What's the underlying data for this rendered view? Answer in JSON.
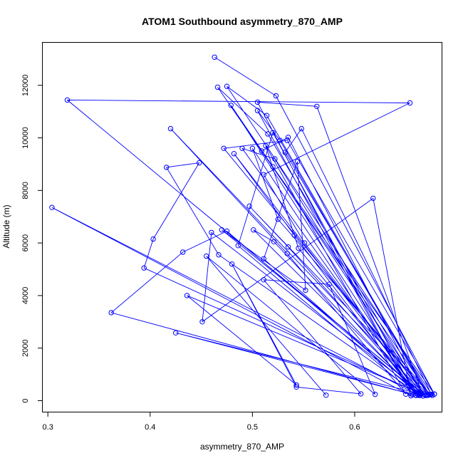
{
  "chart_data": {
    "type": "line",
    "title": "ATOM1 Southbound asymmetry_870_AMP",
    "xlabel": "asymmetry_870_AMP",
    "ylabel": "Altitude (m)",
    "xlim": [
      0.295,
      0.685
    ],
    "ylim": [
      -420,
      13620
    ],
    "xticks": [
      0.3,
      0.4,
      0.5,
      0.6
    ],
    "xtick_labels": [
      "0.3",
      "0.4",
      "0.5",
      "0.6"
    ],
    "yticks": [
      0,
      2000,
      4000,
      6000,
      8000,
      10000,
      12000
    ],
    "ytick_labels": [
      "0",
      "2000",
      "4000",
      "6000",
      "8000",
      "10000",
      "12000"
    ],
    "grid": false,
    "colors": {
      "series": "#0000ff",
      "axis": "#000000",
      "background": "#ffffff"
    },
    "series": [
      {
        "x": [
          0.463,
          0.523,
          0.678,
          0.676,
          0.475,
          0.514,
          0.672,
          0.675,
          0.548,
          0.532,
          0.673,
          0.466,
          0.515,
          0.667,
          0.563,
          0.505,
          0.655,
          0.505,
          0.527,
          0.671,
          0.472,
          0.534,
          0.678,
          0.509,
          0.535,
          0.665,
          0.319,
          0.654,
          0.511,
          0.551,
          0.669,
          0.47,
          0.552,
          0.544,
          0.511,
          0.661,
          0.479,
          0.52,
          0.668,
          0.42,
          0.534,
          0.65,
          0.513,
          0.545,
          0.663,
          0.49,
          0.522,
          0.664,
          0.482,
          0.541,
          0.66,
          0.486,
          0.52,
          0.66,
          0.5,
          0.525,
          0.674,
          0.497,
          0.535,
          0.663,
          0.501,
          0.521,
          0.662,
          0.304,
          0.655,
          0.618,
          0.451,
          0.46,
          0.665,
          0.394,
          0.403,
          0.448,
          0.416,
          0.467,
          0.664,
          0.475,
          0.432,
          0.362,
          0.657,
          0.425,
          0.67,
          0.436,
          0.543,
          0.48,
          0.543,
          0.606,
          0.511,
          0.575,
          0.62,
          0.455,
          0.572
        ],
        "y": [
          13070,
          11600,
          250,
          200,
          11960,
          10850,
          210,
          240,
          10350,
          9450,
          230,
          11930,
          10150,
          180,
          11200,
          11360,
          260,
          11040,
          9900,
          220,
          9600,
          9900,
          250,
          9500,
          10020,
          300,
          11440,
          11330,
          8600,
          6000,
          210,
          6500,
          4200,
          9100,
          5400,
          270,
          11240,
          8900,
          250,
          10350,
          5600,
          250,
          9700,
          5800,
          200,
          9600,
          9200,
          260,
          9400,
          6300,
          200,
          5900,
          10200,
          200,
          9600,
          6900,
          240,
          7400,
          5850,
          250,
          6500,
          6050,
          220,
          7350,
          190,
          7700,
          3000,
          6400,
          250,
          5050,
          6150,
          9050,
          8880,
          5550,
          200,
          6450,
          5650,
          3350,
          230,
          2580,
          200,
          4000,
          600,
          5200,
          520,
          260,
          4600,
          4430,
          240,
          5500,
          210
        ]
      }
    ]
  }
}
